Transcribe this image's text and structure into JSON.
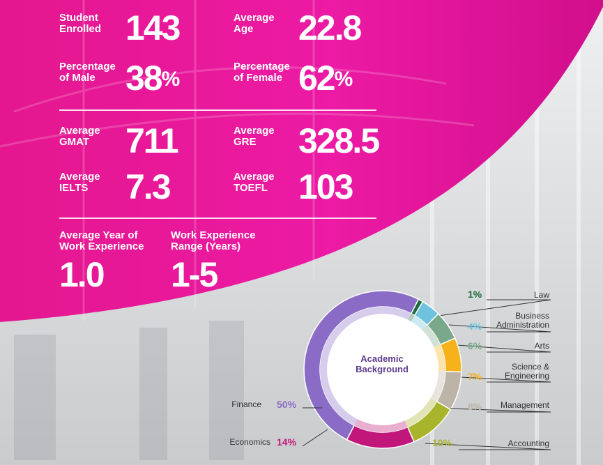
{
  "stats": {
    "students": {
      "label": "Student\nEnrolled",
      "value": "143"
    },
    "age": {
      "label": "Average\nAge",
      "value": "22.8"
    },
    "male": {
      "label": "Percentage\nof Male",
      "value": "38",
      "unit": "%"
    },
    "female": {
      "label": "Percentage\nof Female",
      "value": "62",
      "unit": "%"
    },
    "gmat": {
      "label": "Average\nGMAT",
      "value": "711"
    },
    "gre": {
      "label": "Average\nGRE",
      "value": "328.5"
    },
    "ielts": {
      "label": "Average\nIELTS",
      "value": "7.3"
    },
    "toefl": {
      "label": "Average\nTOEFL",
      "value": "103"
    },
    "work_years": {
      "label": "Average Year of\nWork Experience",
      "value": "1.0"
    },
    "work_range": {
      "label": "Work Experience\nRange (Years)",
      "value": "1-5"
    }
  },
  "colors": {
    "magenta": "#e0199d",
    "finance": "#8a6cc7",
    "economics": "#c2177a",
    "accounting": "#a8b52c",
    "management": "#bdb4a8",
    "science_engineering": "#f5b21b",
    "arts": "#7aa88a",
    "business_administration": "#6fc3df",
    "law": "#1f6a3e"
  },
  "chart_data": {
    "type": "pie",
    "title": "Academic\nBackground",
    "slices": [
      {
        "label": "Finance",
        "value": 50,
        "pct": "50%",
        "color": "#8a6cc7"
      },
      {
        "label": "Law",
        "value": 1,
        "pct": "1%",
        "color": "#1f6a3e"
      },
      {
        "label": "Business\nAdministration",
        "value": 4,
        "pct": "4%",
        "color": "#6fc3df"
      },
      {
        "label": "Arts",
        "value": 6,
        "pct": "6%",
        "color": "#7aa88a"
      },
      {
        "label": "Science &\nEngineering",
        "value": 7,
        "pct": "7%",
        "color": "#f5b21b"
      },
      {
        "label": "Management",
        "value": 8,
        "pct": "8%",
        "color": "#bdb4a8"
      },
      {
        "label": "Accounting",
        "value": 10,
        "pct": "10%",
        "color": "#a8b52c"
      },
      {
        "label": "Economics",
        "value": 14,
        "pct": "14%",
        "color": "#c2177a"
      }
    ]
  }
}
